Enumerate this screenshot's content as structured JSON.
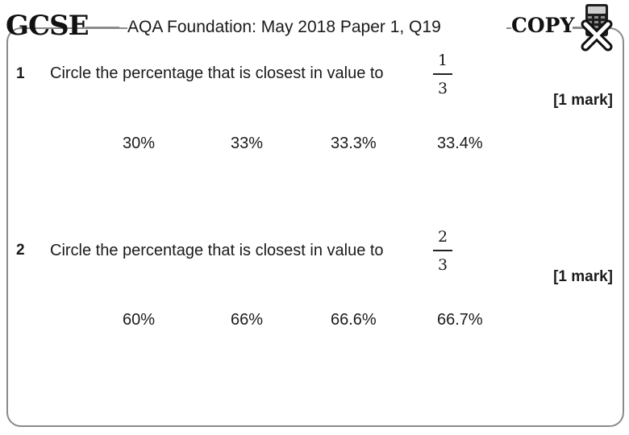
{
  "header": {
    "gcse_logo": "GCSE",
    "title": "AQA Foundation: May 2018 Paper 1, Q19",
    "copy_logo": "COPY"
  },
  "questions": [
    {
      "number": "1",
      "text": "Circle the percentage that is closest in value to",
      "fraction": {
        "numerator": "1",
        "denominator": "3"
      },
      "marks": "[1 mark]",
      "options": [
        "30%",
        "33%",
        "33.3%",
        "33.4%"
      ]
    },
    {
      "number": "2",
      "text": "Circle the percentage that is closest in value to",
      "fraction": {
        "numerator": "2",
        "denominator": "3"
      },
      "marks": "[1 mark]",
      "options": [
        "60%",
        "66%",
        "66.6%",
        "66.7%"
      ]
    }
  ],
  "icons": {
    "calculator": "calculator-crossed-icon"
  },
  "colors": {
    "frame": "#8a8a8a",
    "text": "#1a1a1a"
  }
}
